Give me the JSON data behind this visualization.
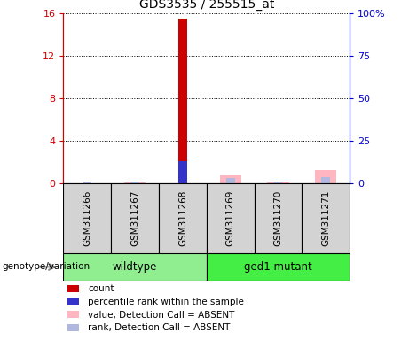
{
  "title": "GDS3535 / 255515_at",
  "samples": [
    "GSM311266",
    "GSM311267",
    "GSM311268",
    "GSM311269",
    "GSM311270",
    "GSM311271"
  ],
  "groups": [
    {
      "name": "wildtype",
      "color": "#90ee90",
      "samples_range": [
        0,
        2
      ]
    },
    {
      "name": "ged1 mutant",
      "color": "#44ee44",
      "samples_range": [
        3,
        5
      ]
    }
  ],
  "count_values": [
    0.0,
    0.0,
    15.5,
    0.0,
    0.0,
    0.0
  ],
  "percentile_values": [
    0.0,
    0.0,
    13.0,
    0.0,
    0.0,
    0.0
  ],
  "absent_value_values": [
    0.0,
    0.5,
    0.0,
    5.0,
    0.5,
    8.0
  ],
  "absent_rank_values": [
    1.0,
    1.3,
    0.0,
    3.5,
    1.3,
    3.6
  ],
  "ylim_left": [
    0,
    16
  ],
  "ylim_right": [
    0,
    100
  ],
  "yticks_left": [
    0,
    4,
    8,
    12,
    16
  ],
  "yticks_right": [
    0,
    25,
    50,
    75,
    100
  ],
  "yticklabels_left": [
    "0",
    "4",
    "8",
    "12",
    "16"
  ],
  "yticklabels_right": [
    "0",
    "25",
    "50",
    "75",
    "100%"
  ],
  "count_color": "#cc0000",
  "percentile_color": "#3333cc",
  "absent_value_color": "#ffb6c1",
  "absent_rank_color": "#b0b8e0",
  "legend_items": [
    {
      "color": "#cc0000",
      "label": "count"
    },
    {
      "color": "#3333cc",
      "label": "percentile rank within the sample"
    },
    {
      "color": "#ffb6c1",
      "label": "value, Detection Call = ABSENT"
    },
    {
      "color": "#b0b8e0",
      "label": "rank, Detection Call = ABSENT"
    }
  ],
  "xlabel_area_label": "genotype/variation",
  "tick_label_color_left": "#cc0000",
  "tick_label_color_right": "#0000cc"
}
